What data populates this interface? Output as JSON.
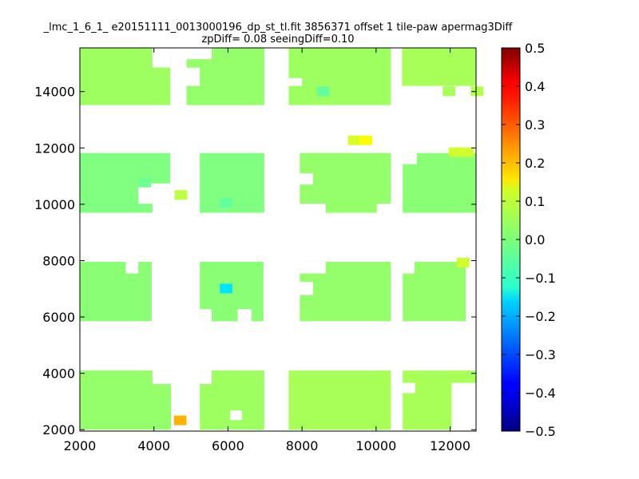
{
  "chart_data": {
    "type": "heatmap",
    "title_line1": "_lmc_1_6_1_ e20151111_0013000196_dp_st_tl.fit 3856371 offset 1 tile-paw apermag3Diff",
    "title_line2": "zpDiff= 0.08 seeingDiff=0.10",
    "xlabel": "",
    "ylabel": "",
    "xlim": [
      2000,
      12700
    ],
    "ylim": [
      1950,
      15550
    ],
    "x_ticks": [
      2000,
      4000,
      6000,
      8000,
      10000,
      12000
    ],
    "y_ticks": [
      2000,
      4000,
      6000,
      8000,
      10000,
      12000,
      14000
    ],
    "colorbar": {
      "vmin": -0.5,
      "vmax": 0.5,
      "ticks": [
        -0.5,
        -0.4,
        -0.3,
        -0.2,
        -0.1,
        0.0,
        0.1,
        0.2,
        0.3,
        0.4,
        0.5
      ],
      "tick_labels": [
        "−0.5",
        "−0.4",
        "−0.3",
        "−0.2",
        "−0.1",
        "0.0",
        "0.1",
        "0.2",
        "0.3",
        "0.4",
        "0.5"
      ],
      "colormap": "jet"
    },
    "grid": false,
    "cell_size": 340,
    "blocks": [
      {
        "x": [
          2000,
          4440
        ],
        "y": [
          13520,
          15550
        ],
        "value": 0.03
      },
      {
        "x": [
          4880,
          6980
        ],
        "y": [
          13520,
          15550
        ],
        "value": 0.02
      },
      {
        "x": [
          7640,
          10400
        ],
        "y": [
          13520,
          15550
        ],
        "value": 0.03
      },
      {
        "x": [
          10700,
          12700
        ],
        "y": [
          14200,
          15550
        ],
        "value": 0.04
      },
      {
        "x": [
          2000,
          4440
        ],
        "y": [
          9700,
          11820
        ],
        "value": 0.0
      },
      {
        "x": [
          5240,
          6980
        ],
        "y": [
          9700,
          11820
        ],
        "value": 0.0
      },
      {
        "x": [
          7940,
          10400
        ],
        "y": [
          9700,
          11820
        ],
        "value": 0.02
      },
      {
        "x": [
          10720,
          12700
        ],
        "y": [
          9700,
          11820
        ],
        "value": 0.01
      },
      {
        "x": [
          2000,
          3940
        ],
        "y": [
          5850,
          7960
        ],
        "value": 0.01
      },
      {
        "x": [
          5240,
          6960
        ],
        "y": [
          5850,
          7960
        ],
        "value": 0.01
      },
      {
        "x": [
          7940,
          10400
        ],
        "y": [
          5850,
          7960
        ],
        "value": 0.02
      },
      {
        "x": [
          10720,
          12420
        ],
        "y": [
          5850,
          7960
        ],
        "value": 0.02
      },
      {
        "x": [
          2000,
          4460
        ],
        "y": [
          2000,
          4100
        ],
        "value": 0.02
      },
      {
        "x": [
          5240,
          6980
        ],
        "y": [
          2000,
          4100
        ],
        "value": 0.03
      },
      {
        "x": [
          7640,
          10400
        ],
        "y": [
          2000,
          4100
        ],
        "value": 0.04
      },
      {
        "x": [
          10720,
          12700
        ],
        "y": [
          2000,
          4100
        ],
        "value": 0.04
      }
    ],
    "holes": [
      {
        "x": [
          3960,
          4440
        ],
        "y": [
          14850,
          15550
        ]
      },
      {
        "x": [
          4880,
          5560
        ],
        "y": [
          15150,
          15550
        ]
      },
      {
        "x": [
          4880,
          5240
        ],
        "y": [
          14200,
          14850
        ]
      },
      {
        "x": [
          7640,
          8000
        ],
        "y": [
          14200,
          14480
        ]
      },
      {
        "x": [
          10700,
          11000
        ],
        "y": [
          13800,
          14200
        ]
      },
      {
        "x": [
          3580,
          4440
        ],
        "y": [
          10020,
          10740
        ]
      },
      {
        "x": [
          3960,
          4440
        ],
        "y": [
          9700,
          10020
        ]
      },
      {
        "x": [
          7940,
          8300
        ],
        "y": [
          10700,
          11100
        ]
      },
      {
        "x": [
          7940,
          8640
        ],
        "y": [
          9700,
          10020
        ]
      },
      {
        "x": [
          10020,
          10400
        ],
        "y": [
          9700,
          10020
        ]
      },
      {
        "x": [
          10720,
          11100
        ],
        "y": [
          11420,
          11820
        ]
      },
      {
        "x": [
          3240,
          3580
        ],
        "y": [
          7540,
          7960
        ]
      },
      {
        "x": [
          5240,
          5560
        ],
        "y": [
          5850,
          6280
        ]
      },
      {
        "x": [
          6260,
          6640
        ],
        "y": [
          5850,
          6280
        ]
      },
      {
        "x": [
          7940,
          8300
        ],
        "y": [
          6780,
          7250
        ]
      },
      {
        "x": [
          7940,
          8640
        ],
        "y": [
          7540,
          7960
        ]
      },
      {
        "x": [
          10720,
          11040
        ],
        "y": [
          7540,
          7960
        ]
      },
      {
        "x": [
          3960,
          4460
        ],
        "y": [
          3620,
          4100
        ]
      },
      {
        "x": [
          5240,
          5560
        ],
        "y": [
          3620,
          4100
        ]
      },
      {
        "x": [
          6060,
          6380
        ],
        "y": [
          2340,
          2680
        ]
      },
      {
        "x": [
          10720,
          11060
        ],
        "y": [
          3300,
          3660
        ]
      },
      {
        "x": [
          12040,
          12700
        ],
        "y": [
          2000,
          3660
        ]
      }
    ],
    "cells": [
      {
        "x": 4560,
        "y": 10160,
        "value": 0.06
      },
      {
        "x": 11960,
        "y": 11680,
        "value": 0.08
      },
      {
        "x": 12300,
        "y": 11680,
        "value": 0.08
      },
      {
        "x": 11800,
        "y": 13840,
        "value": 0.04
      },
      {
        "x": 12560,
        "y": 13840,
        "value": 0.05
      },
      {
        "x": 9240,
        "y": 12100,
        "value": 0.09
      },
      {
        "x": 9560,
        "y": 12100,
        "value": 0.12
      },
      {
        "x": 12180,
        "y": 7760,
        "value": 0.08
      },
      {
        "x": 4540,
        "y": 2160,
        "value": 0.2
      },
      {
        "x": 5780,
        "y": 6840,
        "value": -0.15
      },
      {
        "x": 3580,
        "y": 10600,
        "value": -0.02
      },
      {
        "x": 5780,
        "y": 9880,
        "value": -0.03
      },
      {
        "x": 8400,
        "y": 13840,
        "value": -0.03
      }
    ]
  }
}
